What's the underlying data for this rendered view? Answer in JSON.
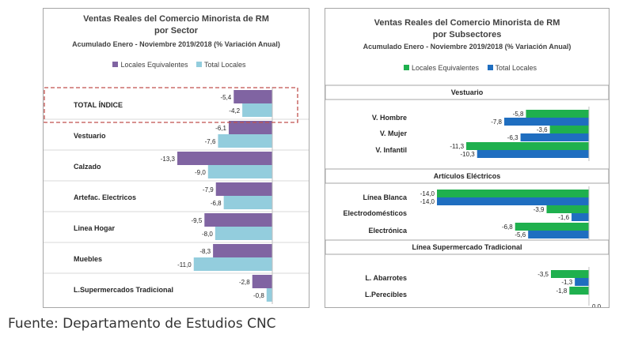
{
  "left_chart": {
    "title_line1": "Ventas Reales del Comercio Minorista de RM",
    "title_line2": "por Sector",
    "subtitle": "Acumulado Enero - Noviembre  2019/2018 (% Variación Anual)",
    "colors": {
      "locales_equivalentes": "#8064a2",
      "total_locales": "#93cddd"
    }
  },
  "right_chart": {
    "title_line1": "Ventas Reales del Comercio Minorista de RM",
    "title_line2": "por Subsectores",
    "subtitle": "Acumulado Enero - Noviembre 2019/2018 (% Variación Anual)",
    "colors": {
      "locales_equivalentes": "#1fb04e",
      "total_locales": "#1f6ec0"
    }
  },
  "source_text": "Fuente: Departamento de Estudios CNC",
  "chart_data": [
    {
      "type": "bar",
      "orientation": "horizontal",
      "title": "Ventas Reales del Comercio Minorista de RM por Sector",
      "subtitle": "Acumulado Enero - Noviembre  2019/2018 (% Variación Anual)",
      "categories": [
        "TOTAL ÍNDICE",
        "Vestuario",
        "Calzado",
        "Artefac. Electricos",
        "Linea Hogar",
        "Muebles",
        "L.Supermercados Tradicional"
      ],
      "highlighted_category": "TOTAL ÍNDICE",
      "series": [
        {
          "name": "Locales Equivalentes",
          "values": [
            -5.4,
            -6.1,
            -13.3,
            -7.9,
            -9.5,
            -8.3,
            -2.8
          ],
          "labels": [
            "-5,4",
            "-6,1",
            "-13,3",
            "-7,9",
            "-9,5",
            "-8,3",
            "-2,8"
          ]
        },
        {
          "name": "Total Locales",
          "values": [
            -4.2,
            -7.6,
            -9.0,
            -6.8,
            -8.0,
            -11.0,
            -0.8
          ],
          "labels": [
            "-4,2",
            "-7,6",
            "-9,0",
            "-6,8",
            "-8,0",
            "-11,0",
            "-0,8"
          ]
        }
      ],
      "xlim": [
        -14,
        0
      ],
      "legend": "top"
    },
    {
      "type": "bar",
      "orientation": "horizontal",
      "title": "Ventas Reales del Comercio Minorista de RM por Subsectores",
      "subtitle": "Acumulado Enero - Noviembre 2019/2018 (% Variación Anual)",
      "groups": [
        {
          "name": "Vestuario",
          "categories": [
            "V. Hombre",
            "V. Mujer",
            "V. Infantil"
          ],
          "locales_equivalentes": [
            -5.8,
            -3.6,
            -11.3
          ],
          "total_locales": [
            -7.8,
            -6.3,
            -10.3
          ],
          "le_labels": [
            "-5,8",
            "-3,6",
            "-11,3"
          ],
          "tl_labels": [
            "-7,8",
            "-6,3",
            "-10,3"
          ]
        },
        {
          "name": "Artículos Eléctricos",
          "categories": [
            "Línea Blanca",
            "Electrodomésticos",
            "Electrónica"
          ],
          "locales_equivalentes": [
            -14.0,
            -3.9,
            -6.8
          ],
          "total_locales": [
            -14.0,
            -1.6,
            -5.6
          ],
          "le_labels": [
            "-14,0",
            "-3,9",
            "-6,8"
          ],
          "tl_labels": [
            "-14,0",
            "-1,6",
            "-5,6"
          ]
        },
        {
          "name": "Línea  Supermercado Tradicional",
          "categories": [
            "L. Abarrotes",
            "L.Perecibles"
          ],
          "locales_equivalentes": [
            -3.5,
            -1.8
          ],
          "total_locales": [
            -1.3,
            0.0
          ],
          "le_labels": [
            "-3,5",
            "-1,8"
          ],
          "tl_labels": [
            "-1,3",
            "0,0"
          ]
        }
      ],
      "series_names": [
        "Locales Equivalentes",
        "Total Locales"
      ],
      "xlim": [
        -14,
        0
      ],
      "legend": "top"
    }
  ]
}
